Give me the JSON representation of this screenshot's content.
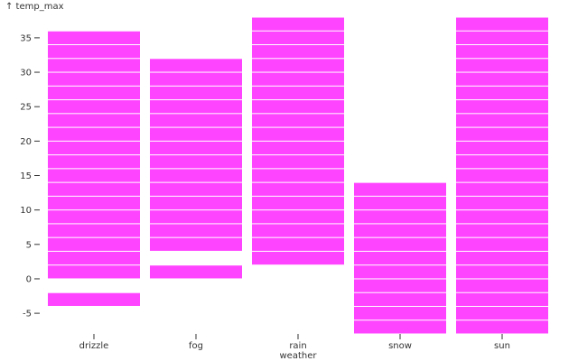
{
  "chart_data": {
    "type": "bar",
    "title": "",
    "xlabel": "weather",
    "ylabel": "temp_max",
    "ylabel_arrow": "↑",
    "y_ticks": [
      -5,
      0,
      5,
      10,
      15,
      20,
      25,
      30,
      35
    ],
    "ylim": [
      -8,
      38
    ],
    "color": "#ff44ff",
    "band_step": 2,
    "categories": [
      "drizzle",
      "fog",
      "rain",
      "snow",
      "sun"
    ],
    "ranges": [
      {
        "category": "drizzle",
        "segments": [
          [
            -4,
            -2
          ],
          [
            0,
            36
          ]
        ]
      },
      {
        "category": "fog",
        "segments": [
          [
            0,
            2
          ],
          [
            4,
            32
          ]
        ]
      },
      {
        "category": "rain",
        "segments": [
          [
            2,
            38
          ]
        ]
      },
      {
        "category": "snow",
        "segments": [
          [
            -8,
            14
          ]
        ]
      },
      {
        "category": "sun",
        "segments": [
          [
            -8,
            38
          ]
        ]
      }
    ]
  }
}
